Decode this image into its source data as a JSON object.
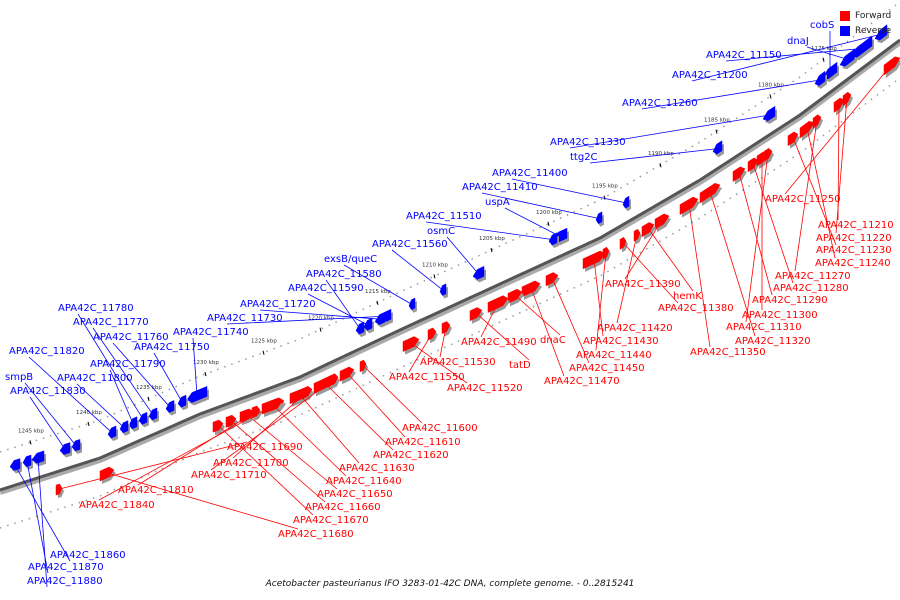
{
  "colors": {
    "forward": "#ff0000",
    "reverse": "#0000ff",
    "backbone": "#888888"
  },
  "legend": [
    {
      "label": "Forward",
      "color": "#ff0000"
    },
    {
      "label": "Reverse",
      "color": "#0000ff"
    }
  ],
  "caption": "Acetobacter pasteurianus IFO 3283-01-42C DNA, complete genome. - 0..2815241",
  "ticks": [
    "1175 kbp",
    "1180 kbp",
    "1185 kbp",
    "1190 kbp",
    "1195 kbp",
    "1200 kbp",
    "1205 kbp",
    "1210 kbp",
    "1215 kbp",
    "1220 kbp",
    "1225 kbp",
    "1230 kbp",
    "1235 kbp",
    "1240 kbp",
    "1245 kbp"
  ],
  "reverse_genes": [
    "cobS",
    "dnaJ",
    "APA42C_11150",
    "APA42C_11200",
    "APA42C_11260",
    "APA42C_11330",
    "ttg2C",
    "APA42C_11400",
    "APA42C_11410",
    "uspA",
    "APA42C_11510",
    "osmC",
    "APA42C_11560",
    "exsB/queC",
    "APA42C_11580",
    "APA42C_11590",
    "APA42C_11720",
    "APA42C_11730",
    "APA42C_11740",
    "APA42C_11750",
    "APA42C_11760",
    "APA42C_11770",
    "APA42C_11780",
    "APA42C_11790",
    "APA42C_11800",
    "APA42C_11820",
    "smpB",
    "APA42C_11830",
    "APA42C_11860",
    "APA42C_11870",
    "APA42C_11880"
  ],
  "forward_genes": [
    "APA42C_11250",
    "APA42C_11210",
    "APA42C_11220",
    "APA42C_11230",
    "APA42C_11240",
    "APA42C_11270",
    "APA42C_11280",
    "APA42C_11290",
    "APA42C_11300",
    "APA42C_11310",
    "APA42C_11320",
    "APA42C_11350",
    "APA42C_11390",
    "hemK",
    "APA42C_11380",
    "APA42C_11420",
    "APA42C_11430",
    "APA42C_11440",
    "APA42C_11450",
    "APA42C_11470",
    "dnaC",
    "APA42C_11490",
    "tatD",
    "APA42C_11530",
    "APA42C_11550",
    "APA42C_11520",
    "APA42C_11600",
    "APA42C_11610",
    "APA42C_11620",
    "APA42C_11630",
    "APA42C_11640",
    "APA42C_11650",
    "APA42C_11660",
    "APA42C_11670",
    "APA42C_11680",
    "APA42C_11690",
    "APA42C_11700",
    "APA42C_11710",
    "APA42C_11810",
    "APA42C_11840"
  ]
}
